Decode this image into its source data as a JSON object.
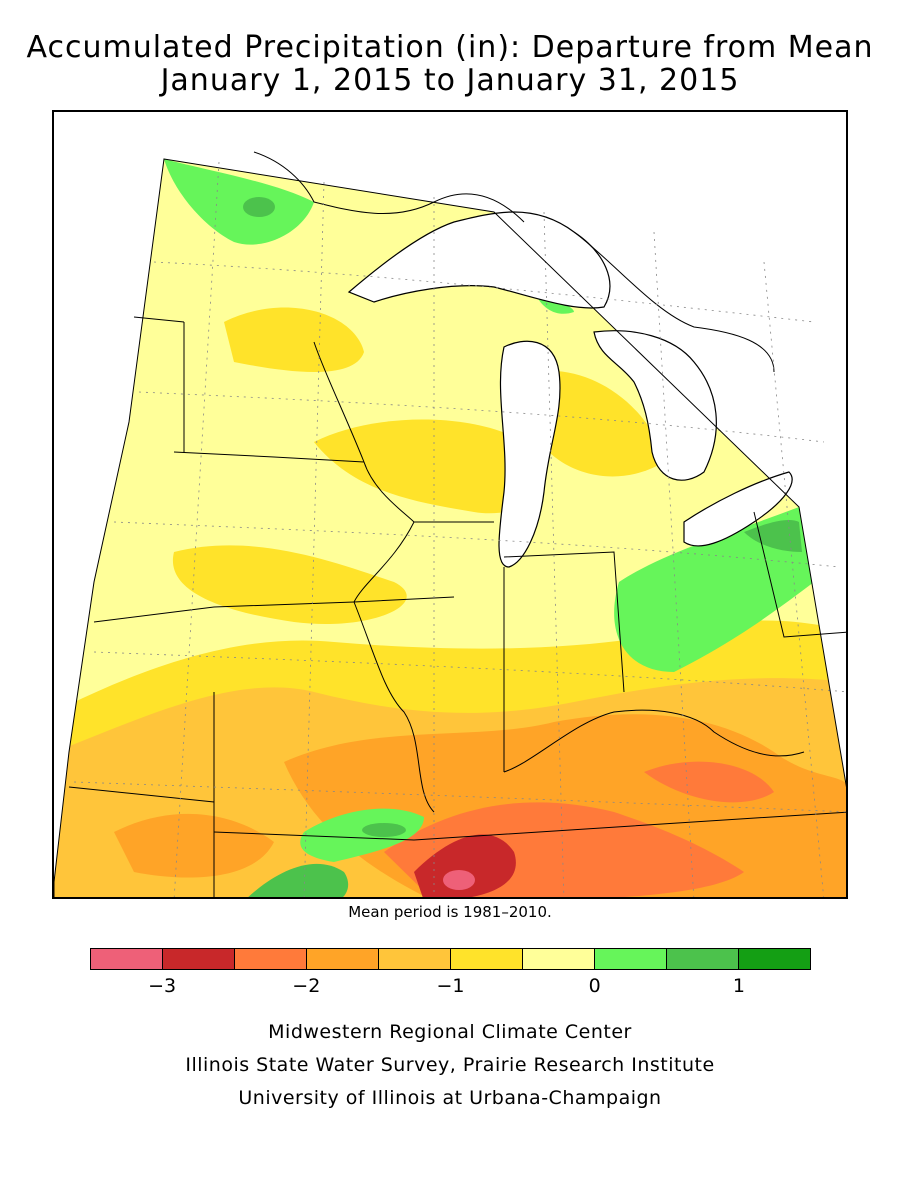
{
  "title": {
    "line1": "Accumulated Precipitation (in): Departure from Mean",
    "line2": "January 1, 2015 to January 31, 2015"
  },
  "note": "Mean period is 1981–2010.",
  "legend": {
    "colors": [
      "#ee6078",
      "#c8282a",
      "#ff7a3a",
      "#ffa427",
      "#ffc53a",
      "#ffe32a",
      "#ffff99",
      "#66f55a",
      "#4cc24c",
      "#149f14"
    ],
    "ticks": [
      {
        "label": "−3",
        "value": -3
      },
      {
        "label": "−2",
        "value": -2
      },
      {
        "label": "−1",
        "value": -1
      },
      {
        "label": "0",
        "value": 0
      },
      {
        "label": "1",
        "value": 1
      }
    ],
    "min": -3.5,
    "max": 1.5
  },
  "credits": {
    "line1": "Midwestern Regional Climate Center",
    "line2": "Illinois State Water Survey, Prairie Research Institute",
    "line3": "University of Illinois at Urbana-Champaign"
  }
}
